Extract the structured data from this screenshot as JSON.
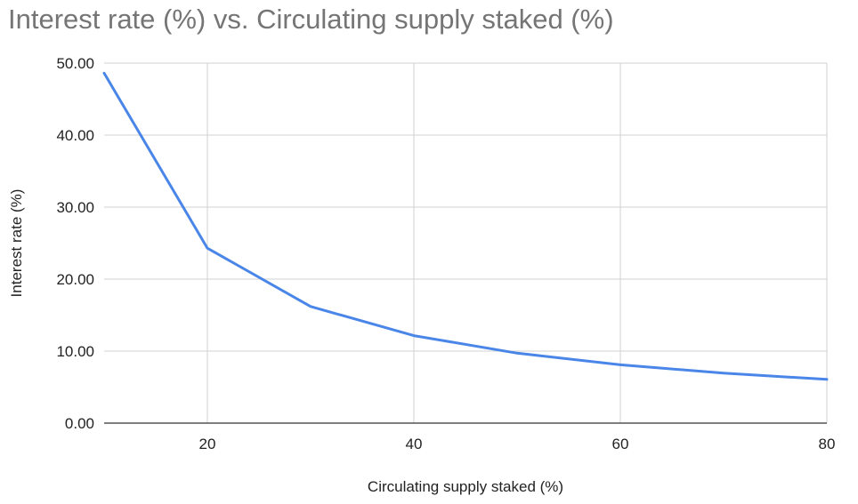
{
  "chart_data": {
    "type": "line",
    "title": "Interest rate (%) vs. Circulating supply staked (%)",
    "xlabel": "Circulating supply staked (%)",
    "ylabel": "Interest rate (%)",
    "xlim": [
      10,
      80
    ],
    "ylim": [
      0,
      50
    ],
    "x_ticks": [
      20,
      40,
      60,
      80
    ],
    "y_ticks": [
      "0.00",
      "10.00",
      "20.00",
      "30.00",
      "40.00",
      "50.00"
    ],
    "grid": true,
    "series": [
      {
        "name": "Interest rate (%)",
        "color": "#4a86e8",
        "x": [
          10,
          20,
          30,
          40,
          50,
          60,
          70,
          80
        ],
        "y": [
          48.6,
          24.3,
          16.2,
          12.15,
          9.72,
          8.1,
          6.94,
          6.08
        ]
      }
    ]
  }
}
